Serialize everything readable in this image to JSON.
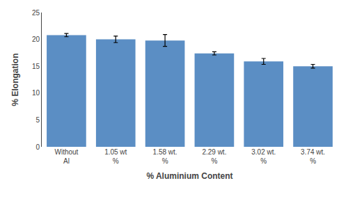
{
  "chart_data": {
    "type": "bar",
    "categories": [
      "Without\nAl",
      "1.05 wt\n%",
      "1.58 wt.\n%",
      "2.29 wt.\n%",
      "3.02 wt.\n%",
      "3.74 wt.\n%"
    ],
    "values": [
      20.8,
      20.0,
      19.8,
      17.4,
      15.9,
      15.0
    ],
    "errors": [
      0.3,
      0.6,
      1.1,
      0.3,
      0.55,
      0.35
    ],
    "color": "#5b8ec4",
    "xlabel": "% Aluminium Content",
    "ylabel": "% Elongation",
    "ylim": [
      0,
      25
    ],
    "yticks": [
      0,
      5,
      10,
      15,
      20,
      25
    ],
    "grid": false
  }
}
